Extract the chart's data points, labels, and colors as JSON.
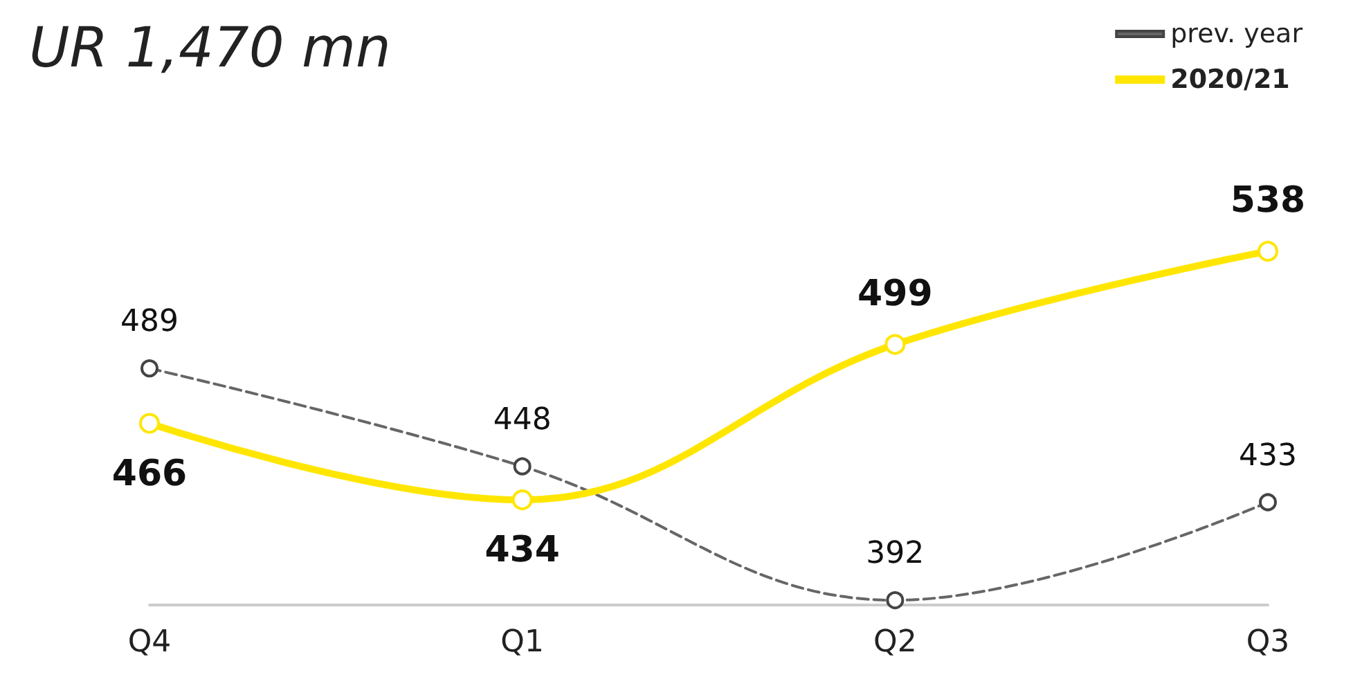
{
  "chart_data": {
    "type": "line",
    "title": "UR 1,470 mn",
    "categories": [
      "Q4",
      "Q1",
      "Q2",
      "Q3"
    ],
    "series": [
      {
        "name": "prev. year",
        "color": "#666666",
        "values": [
          489,
          448,
          392,
          433
        ],
        "line_style": "dashed"
      },
      {
        "name": "2020/21",
        "color": "#ffe600",
        "values": [
          466,
          434,
          499,
          538
        ],
        "line_style": "solid"
      }
    ],
    "data_labels": true,
    "marker": "circle",
    "legend": "top right",
    "grid": false
  }
}
